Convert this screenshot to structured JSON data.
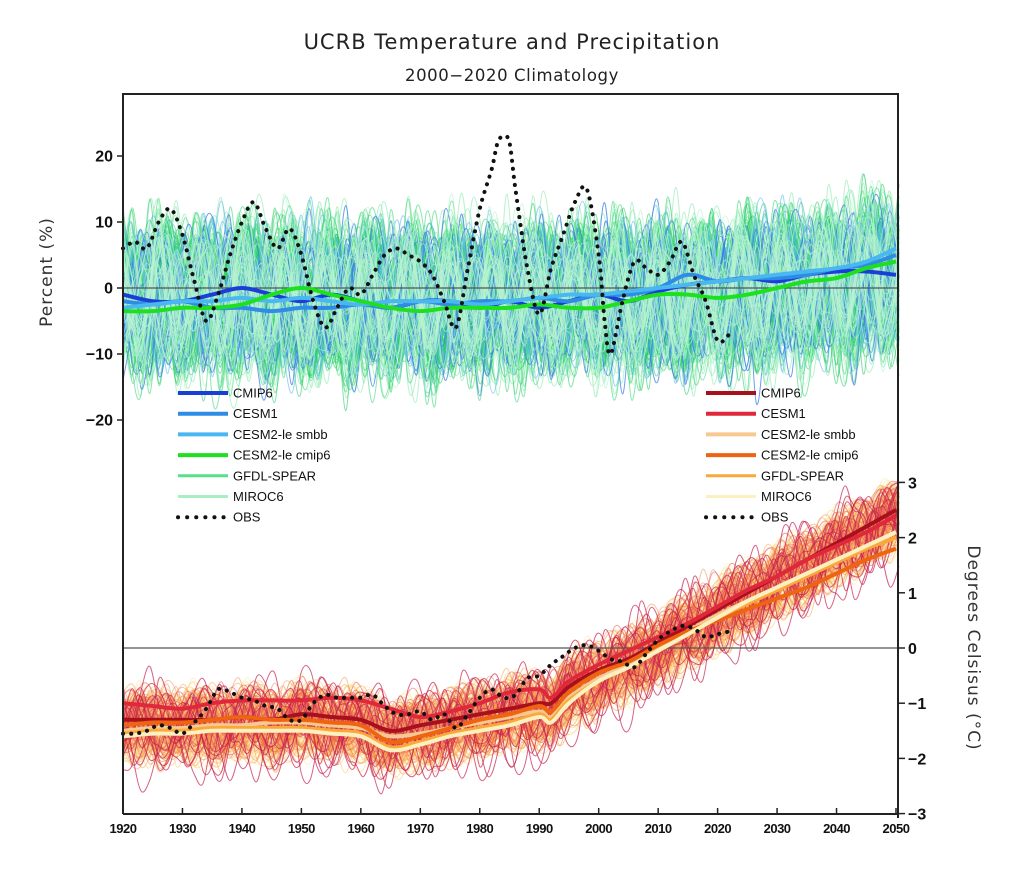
{
  "chart_data": {
    "type": "line",
    "title": "UCRB Temperature and Precipitation",
    "subtitle": "2000−2020 Climatology",
    "xlabel": "",
    "x_ticks": [
      1920,
      1930,
      1940,
      1950,
      1960,
      1970,
      1980,
      1990,
      2000,
      2010,
      2020,
      2030,
      2040,
      2050
    ],
    "xlim": [
      1920,
      2051
    ],
    "grid": false,
    "panels": [
      {
        "name": "precipitation",
        "ylabel": "Percent (%)",
        "y_axis_side": "left",
        "ylim": [
          -25,
          25
        ],
        "y_ticks": [
          20,
          10,
          0,
          -10,
          -20
        ],
        "zero_line": true,
        "ensemble_spread_range": [
          -25,
          25
        ],
        "legend_placement": "bottom-left",
        "legend": [
          {
            "label": "CMIP6",
            "color": "#1a3fd6",
            "width": "thick"
          },
          {
            "label": "CESM1",
            "color": "#2f8ce6",
            "width": "thick"
          },
          {
            "label": "CESM2-le smbb",
            "color": "#49b8f0",
            "width": "thick"
          },
          {
            "label": "CESM2-le cmip6",
            "color": "#1fe01f",
            "width": "thick"
          },
          {
            "label": "GFDL-SPEAR",
            "color": "#57e08a",
            "width": "medium"
          },
          {
            "label": "MIROC6",
            "color": "#a8f0c4",
            "width": "medium"
          },
          {
            "label": "OBS",
            "color": "#111111",
            "style": "dotted"
          }
        ],
        "series": [
          {
            "name": "CMIP6",
            "x": [
              1920,
              1925,
              1930,
              1935,
              1940,
              1945,
              1950,
              1955,
              1960,
              1965,
              1970,
              1975,
              1980,
              1985,
              1990,
              1995,
              2000,
              2005,
              2010,
              2015,
              2020,
              2025,
              2030,
              2035,
              2040,
              2045,
              2050
            ],
            "y": [
              -1,
              -2,
              -2,
              -1,
              0,
              -1,
              -2,
              -1,
              -2,
              -3,
              -2,
              -2,
              -3,
              -2,
              -3,
              -2,
              -1,
              -2,
              -0.5,
              0.5,
              1,
              1.5,
              1,
              2,
              2.5,
              2.5,
              2
            ]
          },
          {
            "name": "CESM1",
            "x": [
              1920,
              1925,
              1930,
              1935,
              1940,
              1945,
              1950,
              1955,
              1960,
              1965,
              1970,
              1975,
              1980,
              1985,
              1990,
              1995,
              2000,
              2005,
              2010,
              2015,
              2020,
              2025,
              2030,
              2035,
              2040,
              2045,
              2050
            ],
            "y": [
              -2,
              -2.5,
              -2,
              -3,
              -3,
              -3.5,
              -3,
              -3,
              -2.5,
              -3,
              -2,
              -2.5,
              -2,
              -2,
              -1.5,
              -2,
              -1,
              -1,
              0,
              2,
              1,
              1.5,
              1.5,
              2,
              3,
              3.5,
              5
            ]
          },
          {
            "name": "CESM2-le smbb",
            "x": [
              1920,
              1925,
              1930,
              1935,
              1940,
              1945,
              1950,
              1955,
              1960,
              1965,
              1970,
              1975,
              1980,
              1985,
              1990,
              1995,
              2000,
              2005,
              2010,
              2015,
              2020,
              2025,
              2030,
              2035,
              2040,
              2045,
              2050
            ],
            "y": [
              -3,
              -2.5,
              -2,
              -2,
              -1.5,
              -2,
              -1.5,
              -2,
              -2.5,
              -2,
              -2,
              -2,
              -2.5,
              -2,
              -1.5,
              -1,
              -1,
              -0.5,
              0,
              0.5,
              1,
              1.5,
              2,
              2.5,
              3,
              4,
              6
            ]
          },
          {
            "name": "CESM2-le cmip6",
            "x": [
              1920,
              1925,
              1930,
              1935,
              1940,
              1945,
              1950,
              1955,
              1960,
              1965,
              1970,
              1975,
              1980,
              1985,
              1990,
              1995,
              2000,
              2005,
              2010,
              2015,
              2020,
              2025,
              2030,
              2035,
              2040,
              2045,
              2050
            ],
            "y": [
              -3.5,
              -3.5,
              -3,
              -3,
              -2.5,
              -1,
              0,
              -1,
              -2,
              -3,
              -3.5,
              -3,
              -3,
              -3,
              -2.5,
              -3,
              -3,
              -2,
              -1,
              -1,
              -1.5,
              -1,
              0,
              1,
              1.5,
              3,
              4
            ]
          },
          {
            "name": "OBS",
            "x": [
              1920,
              1922,
              1924,
              1926,
              1928,
              1930,
              1932,
              1934,
              1936,
              1938,
              1940,
              1942,
              1944,
              1946,
              1948,
              1950,
              1952,
              1954,
              1956,
              1958,
              1960,
              1962,
              1964,
              1966,
              1968,
              1970,
              1972,
              1974,
              1976,
              1978,
              1980,
              1982,
              1983,
              1984,
              1985,
              1986,
              1988,
              1990,
              1992,
              1994,
              1996,
              1998,
              2000,
              2001,
              2002,
              2004,
              2006,
              2008,
              2010,
              2012,
              2014,
              2016,
              2018,
              2020,
              2022
            ],
            "y": [
              6,
              7,
              6,
              10,
              12,
              8,
              1,
              -5,
              -1,
              5,
              10,
              13,
              9,
              6,
              9,
              5,
              -2,
              -6,
              -3,
              0,
              -1,
              2,
              5,
              6,
              5,
              4,
              2,
              -2,
              -6,
              3,
              12,
              18,
              22,
              23,
              22,
              15,
              3,
              -4,
              3,
              8,
              13,
              15,
              5,
              -5,
              -10,
              -2,
              4,
              3,
              2,
              4,
              7,
              2,
              -2,
              -8,
              -7
            ]
          }
        ]
      },
      {
        "name": "temperature",
        "ylabel": "Degrees Celsisus (°C)",
        "y_axis_side": "right",
        "ylim": [
          -3,
          3
        ],
        "y_ticks": [
          3,
          2,
          1,
          0,
          -1,
          -2,
          -3
        ],
        "zero_line": true,
        "legend_placement": "top-right",
        "legend": [
          {
            "label": "CMIP6",
            "color": "#a8101e",
            "width": "thick"
          },
          {
            "label": "CESM1",
            "color": "#e0283a",
            "width": "thick"
          },
          {
            "label": "CESM2-le smbb",
            "color": "#f7c890",
            "width": "thick"
          },
          {
            "label": "CESM2-le cmip6",
            "color": "#ee6410",
            "width": "thick"
          },
          {
            "label": "GFDL-SPEAR",
            "color": "#f9a83a",
            "width": "medium"
          },
          {
            "label": "MIROC6",
            "color": "#fdf0c0",
            "width": "medium"
          },
          {
            "label": "OBS",
            "color": "#111111",
            "style": "dotted"
          }
        ],
        "series": [
          {
            "name": "CMIP6",
            "x": [
              1920,
              1925,
              1930,
              1935,
              1940,
              1945,
              1950,
              1955,
              1960,
              1965,
              1970,
              1975,
              1980,
              1985,
              1990,
              1992,
              1995,
              2000,
              2005,
              2010,
              2015,
              2020,
              2025,
              2030,
              2035,
              2040,
              2045,
              2050
            ],
            "y": [
              -1.3,
              -1.3,
              -1.3,
              -1.3,
              -1.25,
              -1.3,
              -1.2,
              -1.25,
              -1.3,
              -1.5,
              -1.4,
              -1.3,
              -1.2,
              -1.1,
              -1.0,
              -1.0,
              -0.7,
              -0.4,
              -0.2,
              0.1,
              0.4,
              0.7,
              1.0,
              1.3,
              1.6,
              1.9,
              2.2,
              2.5
            ]
          },
          {
            "name": "CESM1",
            "x": [
              1920,
              1925,
              1930,
              1935,
              1940,
              1945,
              1950,
              1955,
              1960,
              1965,
              1970,
              1975,
              1980,
              1985,
              1990,
              1992,
              1995,
              2000,
              2005,
              2010,
              2015,
              2020,
              2025,
              2030,
              2035,
              2040,
              2045,
              2050
            ],
            "y": [
              -1.0,
              -1.05,
              -1.1,
              -1.0,
              -0.95,
              -0.95,
              -0.95,
              -0.9,
              -0.95,
              -1.1,
              -1.25,
              -1.15,
              -1.0,
              -0.8,
              -0.75,
              -0.9,
              -0.6,
              -0.3,
              -0.05,
              0.2,
              0.45,
              0.75,
              1.05,
              1.3,
              1.6,
              1.85,
              2.1,
              2.4
            ]
          },
          {
            "name": "CESM2-le smbb",
            "x": [
              1920,
              1925,
              1930,
              1935,
              1940,
              1945,
              1950,
              1955,
              1960,
              1965,
              1970,
              1975,
              1980,
              1985,
              1990,
              1992,
              1995,
              2000,
              2005,
              2010,
              2015,
              2020,
              2025,
              2030,
              2035,
              2040,
              2045,
              2050
            ],
            "y": [
              -1.5,
              -1.45,
              -1.45,
              -1.4,
              -1.4,
              -1.35,
              -1.35,
              -1.4,
              -1.45,
              -1.6,
              -1.55,
              -1.45,
              -1.35,
              -1.25,
              -1.15,
              -1.25,
              -0.9,
              -0.55,
              -0.3,
              0.0,
              0.3,
              0.6,
              0.85,
              1.1,
              1.35,
              1.6,
              1.85,
              2.1
            ]
          },
          {
            "name": "CESM2-le cmip6",
            "x": [
              1920,
              1925,
              1930,
              1935,
              1940,
              1945,
              1950,
              1955,
              1960,
              1965,
              1970,
              1975,
              1980,
              1985,
              1990,
              1992,
              1995,
              2000,
              2005,
              2010,
              2015,
              2020,
              2025,
              2030,
              2035,
              2040,
              2045,
              2050
            ],
            "y": [
              -1.4,
              -1.35,
              -1.35,
              -1.3,
              -1.25,
              -1.3,
              -1.3,
              -1.35,
              -1.4,
              -1.7,
              -1.6,
              -1.45,
              -1.3,
              -1.2,
              -1.05,
              -1.15,
              -0.8,
              -0.45,
              -0.25,
              0.05,
              0.3,
              0.5,
              0.7,
              0.9,
              1.1,
              1.35,
              1.6,
              1.8
            ]
          },
          {
            "name": "GFDL-SPEAR",
            "x": [
              1920,
              1925,
              1930,
              1935,
              1940,
              1945,
              1950,
              1955,
              1960,
              1965,
              1970,
              1975,
              1980,
              1985,
              1990,
              1992,
              1995,
              2000,
              2005,
              2010,
              2015,
              2020,
              2025,
              2030,
              2035,
              2040,
              2045,
              2050
            ],
            "y": [
              -1.55,
              -1.5,
              -1.5,
              -1.45,
              -1.45,
              -1.45,
              -1.45,
              -1.5,
              -1.55,
              -1.8,
              -1.7,
              -1.55,
              -1.45,
              -1.35,
              -1.2,
              -1.3,
              -0.95,
              -0.6,
              -0.35,
              -0.05,
              0.25,
              0.55,
              0.8,
              1.05,
              1.3,
              1.55,
              1.8,
              2.0
            ]
          },
          {
            "name": "MIROC6",
            "x": [
              1920,
              1925,
              1930,
              1935,
              1940,
              1945,
              1950,
              1955,
              1960,
              1965,
              1970,
              1975,
              1980,
              1985,
              1990,
              1992,
              1995,
              2000,
              2005,
              2010,
              2015,
              2020,
              2025,
              2030,
              2035,
              2040,
              2045,
              2050
            ],
            "y": [
              -1.6,
              -1.55,
              -1.55,
              -1.5,
              -1.5,
              -1.5,
              -1.5,
              -1.55,
              -1.6,
              -1.85,
              -1.75,
              -1.6,
              -1.5,
              -1.4,
              -1.25,
              -1.35,
              -1.0,
              -0.6,
              -0.35,
              -0.05,
              0.25,
              0.55,
              0.85,
              1.1,
              1.35,
              1.6,
              1.85,
              2.1
            ]
          },
          {
            "name": "OBS",
            "x": [
              1920,
              1922,
              1924,
              1926,
              1928,
              1930,
              1932,
              1934,
              1936,
              1938,
              1940,
              1942,
              1944,
              1946,
              1948,
              1950,
              1952,
              1954,
              1956,
              1958,
              1960,
              1962,
              1964,
              1966,
              1968,
              1970,
              1972,
              1974,
              1976,
              1978,
              1980,
              1982,
              1984,
              1986,
              1988,
              1990,
              1992,
              1994,
              1996,
              1998,
              2000,
              2002,
              2004,
              2006,
              2008,
              2010,
              2012,
              2014,
              2016,
              2018,
              2020,
              2022
            ],
            "y": [
              -1.55,
              -1.55,
              -1.5,
              -1.4,
              -1.45,
              -1.55,
              -1.35,
              -1.1,
              -0.75,
              -0.8,
              -0.9,
              -0.95,
              -1.05,
              -1.1,
              -1.3,
              -1.3,
              -1.0,
              -0.85,
              -0.9,
              -0.9,
              -0.9,
              -0.85,
              -1.05,
              -1.2,
              -1.2,
              -1.15,
              -1.3,
              -1.2,
              -1.45,
              -1.2,
              -0.9,
              -0.75,
              -0.9,
              -0.85,
              -0.55,
              -0.5,
              -0.3,
              -0.15,
              0.0,
              0.05,
              -0.05,
              -0.2,
              -0.25,
              -0.35,
              -0.1,
              0.15,
              0.3,
              0.4,
              0.35,
              0.2,
              0.25,
              0.3
            ]
          }
        ]
      }
    ]
  }
}
